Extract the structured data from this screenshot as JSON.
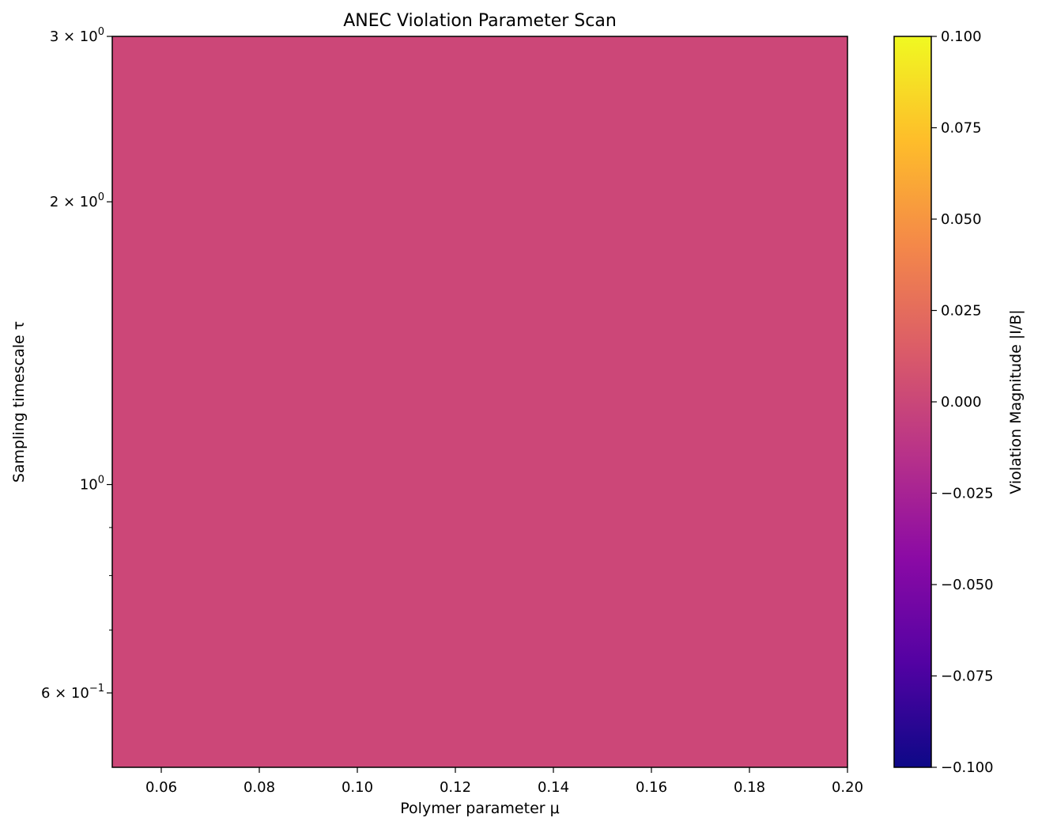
{
  "chart_data": {
    "type": "heatmap",
    "title": "ANEC Violation Parameter Scan",
    "xlabel": "Polymer parameter μ",
    "ylabel": "Sampling timescale τ",
    "xlim": [
      0.05,
      0.2
    ],
    "ylim": [
      0.5,
      3
    ],
    "yscale": "log",
    "x_ticks": [
      {
        "value": 0.06,
        "label": "0.06"
      },
      {
        "value": 0.08,
        "label": "0.08"
      },
      {
        "value": 0.1,
        "label": "0.10"
      },
      {
        "value": 0.12,
        "label": "0.12"
      },
      {
        "value": 0.14,
        "label": "0.14"
      },
      {
        "value": 0.16,
        "label": "0.16"
      },
      {
        "value": 0.18,
        "label": "0.18"
      },
      {
        "value": 0.2,
        "label": "0.20"
      }
    ],
    "y_ticks": [
      {
        "value": 3,
        "label": "3 × 10^0",
        "mantissa": "3 × 10",
        "exp": "0"
      },
      {
        "value": 2,
        "label": "2 × 10^0",
        "mantissa": "2 × 10",
        "exp": "0"
      },
      {
        "value": 1,
        "label": "10^0",
        "mantissa": "10",
        "exp": "0"
      },
      {
        "value": 0.6,
        "label": "6 × 10^-1",
        "mantissa": "6 × 10",
        "exp": "−1"
      }
    ],
    "y_minor_ticks": [
      0.7,
      0.8,
      0.9
    ],
    "field": {
      "value": 0.0,
      "color": "#cc4778",
      "note": "uniform value across the whole scanned region"
    },
    "colorbar": {
      "label": "Violation Magnitude |I/B|",
      "colormap": "plasma",
      "range": [
        -0.1,
        0.1
      ],
      "ticks": [
        {
          "value": 0.1,
          "label": "0.100"
        },
        {
          "value": 0.075,
          "label": "0.075"
        },
        {
          "value": 0.05,
          "label": "0.050"
        },
        {
          "value": 0.025,
          "label": "0.025"
        },
        {
          "value": 0.0,
          "label": "0.000"
        },
        {
          "value": -0.025,
          "label": "−0.025"
        },
        {
          "value": -0.05,
          "label": "−0.050"
        },
        {
          "value": -0.075,
          "label": "−0.075"
        },
        {
          "value": -0.1,
          "label": "−0.100"
        }
      ],
      "stops": [
        "#0d0887",
        "#5302a3",
        "#8b0aa5",
        "#b83289",
        "#db5c68",
        "#f48849",
        "#febd2a",
        "#f0f921"
      ]
    },
    "grid": false,
    "legend": "none"
  }
}
